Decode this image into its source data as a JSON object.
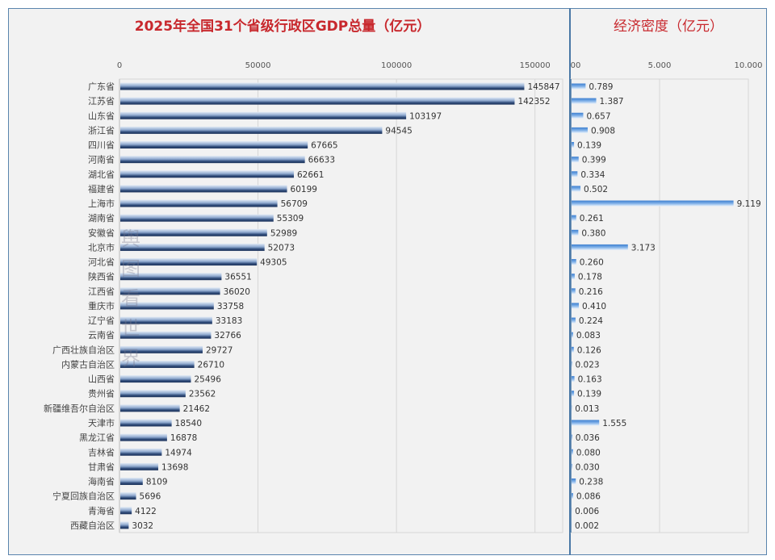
{
  "watermark": "舆图看世界",
  "chart_data": [
    {
      "type": "bar",
      "orientation": "horizontal",
      "title": "2025年全国31个省级行政区GDP总量（亿元）",
      "xlim": [
        0,
        160000
      ],
      "xticks": [
        "0",
        "50000",
        "100000",
        "150000"
      ],
      "xtick_values": [
        0,
        50000,
        100000,
        150000
      ],
      "grid": true,
      "categories": [
        "广东省",
        "江苏省",
        "山东省",
        "浙江省",
        "四川省",
        "河南省",
        "湖北省",
        "福建省",
        "上海市",
        "湖南省",
        "安徽省",
        "北京市",
        "河北省",
        "陕西省",
        "江西省",
        "重庆市",
        "辽宁省",
        "云南省",
        "广西壮族自治区",
        "内蒙古自治区",
        "山西省",
        "贵州省",
        "新疆维吾尔自治区",
        "天津市",
        "黑龙江省",
        "吉林省",
        "甘肃省",
        "海南省",
        "宁夏回族自治区",
        "青海省",
        "西藏自治区"
      ],
      "values": [
        145847,
        142352,
        103197,
        94545,
        67665,
        66633,
        62661,
        60199,
        56709,
        55309,
        52989,
        52073,
        49305,
        36551,
        36020,
        33758,
        33183,
        32766,
        29727,
        26710,
        25496,
        23562,
        21462,
        18540,
        16878,
        14974,
        13698,
        8109,
        5696,
        4122,
        3032
      ],
      "color": "#2e4a78"
    },
    {
      "type": "bar",
      "orientation": "horizontal",
      "title": "经济密度（亿元）",
      "xlim": [
        0,
        10
      ],
      "xticks": [
        "00",
        "5.000",
        "10.000"
      ],
      "xtick_values": [
        0,
        5,
        10
      ],
      "grid": true,
      "values": [
        "0.789",
        "1.387",
        "0.657",
        "0.908",
        "0.139",
        "0.399",
        "0.334",
        "0.502",
        "9.119",
        "0.261",
        "0.380",
        "3.173",
        "0.260",
        "0.178",
        "0.216",
        "0.410",
        "0.224",
        "0.083",
        "0.126",
        "0.023",
        "0.163",
        "0.139",
        "0.013",
        "1.555",
        "0.036",
        "0.080",
        "0.030",
        "0.238",
        "0.086",
        "0.006",
        "0.002"
      ],
      "color": "#4a8ad4"
    }
  ]
}
